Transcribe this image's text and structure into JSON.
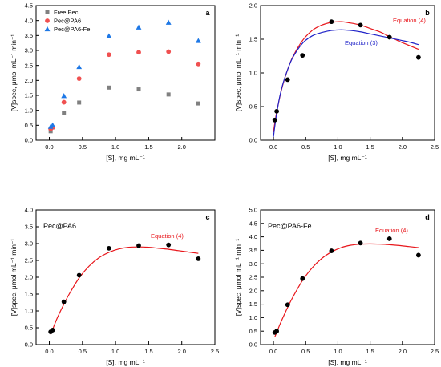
{
  "chart_data": [
    {
      "panel": "a",
      "type": "scatter",
      "panel_letter": "a",
      "xlabel": "[S], mg mL⁻¹",
      "ylabel": "[V]spec, μmol mL⁻¹ min⁻¹",
      "xlim": [
        -0.2,
        2.5
      ],
      "ylim": [
        0,
        4.5
      ],
      "xticks": [
        "0.0",
        "0.5",
        "1.0",
        "1.5",
        "2.0"
      ],
      "xtick_values": [
        0,
        0.5,
        1.0,
        1.5,
        2.0
      ],
      "yticks": [
        "0.0",
        "0.5",
        "1.0",
        "1.5",
        "2.0",
        "2.5",
        "3.0",
        "3.5",
        "4.0",
        "4.5"
      ],
      "ytick_values": [
        0,
        0.5,
        1.0,
        1.5,
        2.0,
        2.5,
        3.0,
        3.5,
        4.0,
        4.5
      ],
      "legend_position": "top-left",
      "series": [
        {
          "name": "Free Pec",
          "marker": "square",
          "color": "#808080",
          "x": [
            0.02,
            0.05,
            0.22,
            0.45,
            0.9,
            1.35,
            1.8,
            2.25
          ],
          "y": [
            0.3,
            0.43,
            0.9,
            1.26,
            1.76,
            1.7,
            1.53,
            1.23
          ]
        },
        {
          "name": "Pec@PA6",
          "marker": "circle",
          "color": "#f05050",
          "x": [
            0.02,
            0.05,
            0.22,
            0.45,
            0.9,
            1.35,
            1.8,
            2.25
          ],
          "y": [
            0.38,
            0.43,
            1.27,
            2.06,
            2.86,
            2.94,
            2.96,
            2.55
          ]
        },
        {
          "name": "Pec@PA6-Fe",
          "marker": "triangle",
          "color": "#1e78e6",
          "x": [
            0.02,
            0.05,
            0.22,
            0.45,
            0.9,
            1.35,
            1.8,
            2.25
          ],
          "y": [
            0.45,
            0.5,
            1.48,
            2.45,
            3.48,
            3.77,
            3.93,
            3.32
          ]
        }
      ]
    },
    {
      "panel": "b",
      "type": "scatter",
      "panel_letter": "b",
      "xlabel": "[S], mg mL⁻¹",
      "ylabel": "[V]spec, μmol mL⁻¹ min⁻¹",
      "xlim": [
        -0.2,
        2.5
      ],
      "ylim": [
        0,
        2.0
      ],
      "xticks": [
        "0.0",
        "0.5",
        "1.0",
        "1.5",
        "2.0",
        "2.5"
      ],
      "xtick_values": [
        0,
        0.5,
        1.0,
        1.5,
        2.0,
        2.5
      ],
      "yticks": [
        "0.0",
        "0.5",
        "1.0",
        "1.5",
        "2.0"
      ],
      "ytick_values": [
        0,
        0.5,
        1.0,
        1.5,
        2.0
      ],
      "points": {
        "x": [
          0.02,
          0.05,
          0.22,
          0.45,
          0.9,
          1.35,
          1.8,
          2.25
        ],
        "y": [
          0.3,
          0.43,
          0.9,
          1.26,
          1.76,
          1.71,
          1.53,
          1.23
        ]
      },
      "curves": [
        {
          "name": "Equation (4)",
          "color": "#e8161b",
          "x": [
            0.0,
            0.02,
            0.05,
            0.1,
            0.15,
            0.22,
            0.3,
            0.45,
            0.6,
            0.75,
            0.9,
            1.05,
            1.2,
            1.35,
            1.5,
            1.65,
            1.8,
            1.95,
            2.1,
            2.25
          ],
          "y": [
            0.12,
            0.25,
            0.42,
            0.65,
            0.84,
            1.05,
            1.24,
            1.48,
            1.63,
            1.71,
            1.75,
            1.76,
            1.74,
            1.71,
            1.66,
            1.61,
            1.54,
            1.47,
            1.41,
            1.35
          ]
        },
        {
          "name": "Equation (3)",
          "color": "#1f22c8",
          "x": [
            0.0,
            0.02,
            0.05,
            0.1,
            0.15,
            0.22,
            0.3,
            0.45,
            0.6,
            0.75,
            0.9,
            1.05,
            1.2,
            1.35,
            1.5,
            1.65,
            1.8,
            1.95,
            2.1,
            2.25
          ],
          "y": [
            0.05,
            0.2,
            0.4,
            0.66,
            0.85,
            1.05,
            1.23,
            1.44,
            1.55,
            1.6,
            1.63,
            1.64,
            1.63,
            1.61,
            1.58,
            1.55,
            1.52,
            1.49,
            1.46,
            1.42
          ]
        }
      ]
    },
    {
      "panel": "c",
      "type": "scatter",
      "panel_letter": "c",
      "title": "Pec@PA6",
      "xlabel": "[S], mg mL⁻¹",
      "ylabel": "[V]spec, μmol mL⁻¹ min⁻¹",
      "xlim": [
        -0.2,
        2.5
      ],
      "ylim": [
        0,
        4.0
      ],
      "xticks": [
        "0.0",
        "0.5",
        "1.0",
        "1.5",
        "2.0",
        "2.5"
      ],
      "xtick_values": [
        0,
        0.5,
        1.0,
        1.5,
        2.0,
        2.5
      ],
      "yticks": [
        "0.0",
        "0.5",
        "1.0",
        "1.5",
        "2.0",
        "2.5",
        "3.0",
        "3.5",
        "4.0"
      ],
      "ytick_values": [
        0,
        0.5,
        1.0,
        1.5,
        2.0,
        2.5,
        3.0,
        3.5,
        4.0
      ],
      "points": {
        "x": [
          0.02,
          0.05,
          0.22,
          0.45,
          0.9,
          1.35,
          1.8,
          2.25
        ],
        "y": [
          0.38,
          0.43,
          1.27,
          2.06,
          2.86,
          2.94,
          2.96,
          2.55
        ]
      },
      "curves": [
        {
          "name": "Equation (4)",
          "color": "#e8161b",
          "x": [
            0.02,
            0.05,
            0.1,
            0.15,
            0.22,
            0.3,
            0.45,
            0.6,
            0.75,
            0.9,
            1.05,
            1.2,
            1.35,
            1.5,
            1.65,
            1.8,
            1.95,
            2.1,
            2.25
          ],
          "y": [
            0.3,
            0.45,
            0.7,
            0.92,
            1.2,
            1.5,
            1.98,
            2.33,
            2.58,
            2.74,
            2.84,
            2.89,
            2.9,
            2.89,
            2.86,
            2.83,
            2.79,
            2.75,
            2.71
          ]
        }
      ]
    },
    {
      "panel": "d",
      "type": "scatter",
      "panel_letter": "d",
      "title": "Pec@PA6-Fe",
      "xlabel": "[S], mg mL⁻¹",
      "ylabel": "[V]spec, μmol mL⁻¹ min⁻¹",
      "xlim": [
        -0.2,
        2.5
      ],
      "ylim": [
        0,
        5.0
      ],
      "xticks": [
        "0.0",
        "0.5",
        "1.0",
        "1.5",
        "2.0",
        "2.5"
      ],
      "xtick_values": [
        0,
        0.5,
        1.0,
        1.5,
        2.0,
        2.5
      ],
      "yticks": [
        "0.0",
        "0.5",
        "1.0",
        "1.5",
        "2.0",
        "2.5",
        "3.0",
        "3.5",
        "4.0",
        "4.5",
        "5.0"
      ],
      "ytick_values": [
        0,
        0.5,
        1.0,
        1.5,
        2.0,
        2.5,
        3.0,
        3.5,
        4.0,
        4.5,
        5.0
      ],
      "points": {
        "x": [
          0.02,
          0.05,
          0.22,
          0.45,
          0.9,
          1.35,
          1.8,
          2.25
        ],
        "y": [
          0.45,
          0.5,
          1.48,
          2.45,
          3.48,
          3.77,
          3.93,
          3.32
        ]
      },
      "curves": [
        {
          "name": "Equation (4)",
          "color": "#e8161b",
          "x": [
            0.02,
            0.05,
            0.1,
            0.15,
            0.22,
            0.3,
            0.45,
            0.6,
            0.75,
            0.9,
            1.05,
            1.2,
            1.35,
            1.5,
            1.65,
            1.8,
            1.95,
            2.1,
            2.25
          ],
          "y": [
            0.28,
            0.45,
            0.75,
            1.02,
            1.38,
            1.76,
            2.38,
            2.85,
            3.2,
            3.44,
            3.6,
            3.69,
            3.73,
            3.74,
            3.73,
            3.71,
            3.68,
            3.64,
            3.6
          ]
        }
      ]
    }
  ]
}
